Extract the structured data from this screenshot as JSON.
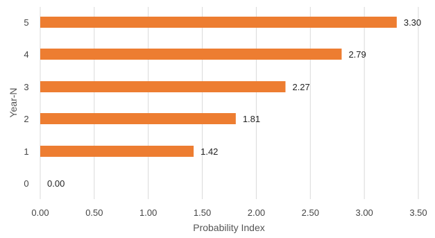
{
  "chart_data": {
    "type": "bar",
    "orientation": "horizontal",
    "categories": [
      "0",
      "1",
      "2",
      "3",
      "4",
      "5"
    ],
    "values": [
      0.0,
      1.42,
      1.81,
      2.27,
      2.79,
      3.3
    ],
    "data_labels": [
      "0.00",
      "1.42",
      "1.81",
      "2.27",
      "2.79",
      "3.30"
    ],
    "xlabel": "Probability Index",
    "ylabel": "Year-N",
    "xlim": [
      0,
      3.5
    ],
    "x_ticks": [
      "0.00",
      "0.50",
      "1.00",
      "1.50",
      "2.00",
      "2.50",
      "3.00",
      "3.50"
    ],
    "grid": "vertical",
    "legend": "none",
    "colors": {
      "bar": "#ED7D31",
      "gridline": "#D9D9D9"
    }
  }
}
